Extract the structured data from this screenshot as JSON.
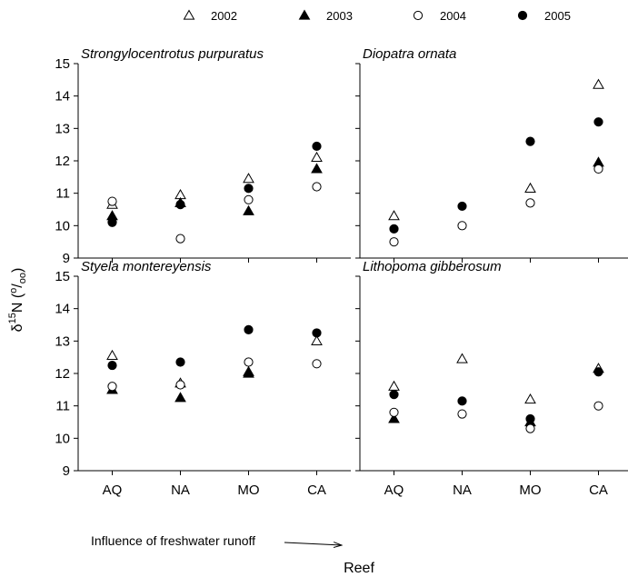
{
  "chart_data": {
    "type": "scatter",
    "categories": [
      "AQ",
      "NA",
      "MO",
      "CA"
    ],
    "ylim": [
      9,
      15
    ],
    "yticks": [
      9,
      10,
      11,
      12,
      13,
      14,
      15
    ],
    "xlabel": "Reef",
    "ylabel": {
      "prefix": "δ",
      "sup": "15",
      "main": "N (",
      "unit_sup": "o",
      "unit_slash": "/",
      "unit_sub": "oo",
      "close": ")"
    },
    "x_annotation": "Influence of freshwater runoff",
    "grid": false,
    "legend_position": "top",
    "series_styles": [
      {
        "name": "2002",
        "marker": "open-triangle"
      },
      {
        "name": "2003",
        "marker": "filled-triangle"
      },
      {
        "name": "2004",
        "marker": "open-circle"
      },
      {
        "name": "2005",
        "marker": "filled-circle"
      }
    ],
    "panels": [
      {
        "title": "Strongylocentrotus purpuratus",
        "series": [
          {
            "name": "2002",
            "values": [
              10.65,
              10.95,
              11.45,
              12.1
            ]
          },
          {
            "name": "2003",
            "values": [
              10.3,
              10.7,
              10.45,
              11.75
            ]
          },
          {
            "name": "2004",
            "values": [
              10.75,
              9.6,
              10.8,
              11.2
            ]
          },
          {
            "name": "2005",
            "values": [
              10.1,
              10.65,
              11.15,
              12.45
            ]
          }
        ]
      },
      {
        "title": "Diopatra ornata",
        "series": [
          {
            "name": "2002",
            "values": [
              10.3,
              null,
              11.15,
              14.35
            ]
          },
          {
            "name": "2003",
            "values": [
              null,
              null,
              null,
              11.95
            ]
          },
          {
            "name": "2004",
            "values": [
              9.5,
              10.0,
              10.7,
              11.75
            ]
          },
          {
            "name": "2005",
            "values": [
              9.9,
              10.6,
              12.6,
              13.2
            ]
          }
        ]
      },
      {
        "title": "Styela montereyensis",
        "series": [
          {
            "name": "2002",
            "values": [
              12.55,
              11.7,
              12.05,
              13.0
            ]
          },
          {
            "name": "2003",
            "values": [
              11.5,
              11.25,
              12.0,
              null
            ]
          },
          {
            "name": "2004",
            "values": [
              11.6,
              11.65,
              12.35,
              12.3
            ]
          },
          {
            "name": "2005",
            "values": [
              12.25,
              12.35,
              13.35,
              13.25
            ]
          }
        ]
      },
      {
        "title": "Lithopoma gibberosum",
        "series": [
          {
            "name": "2002",
            "values": [
              11.6,
              12.45,
              11.2,
              12.15
            ]
          },
          {
            "name": "2003",
            "values": [
              10.6,
              null,
              10.5,
              null
            ]
          },
          {
            "name": "2004",
            "values": [
              10.8,
              10.75,
              10.3,
              11.0
            ]
          },
          {
            "name": "2005",
            "values": [
              11.35,
              11.15,
              10.6,
              12.05
            ]
          }
        ]
      }
    ]
  }
}
